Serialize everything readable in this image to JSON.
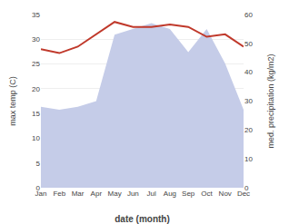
{
  "chart_data": {
    "type": "line",
    "xlabel": "date (month)",
    "ylabel": "max temp (C)",
    "y2label": "med. precipitation (kg/m2)",
    "categories": [
      "Jan",
      "Feb",
      "Mar",
      "Apr",
      "May",
      "Jun",
      "Jul",
      "Aug",
      "Sep",
      "Oct",
      "Nov",
      "Dec"
    ],
    "series": [
      {
        "type": "area",
        "axis": "y2",
        "color": "#c5cce8",
        "values": [
          28,
          27,
          28,
          30,
          53,
          55,
          57,
          55,
          47,
          55,
          43,
          27
        ]
      },
      {
        "type": "line",
        "color": "#c0392b",
        "values": [
          28.0,
          27.2,
          28.5,
          31.0,
          33.5,
          32.5,
          32.5,
          33.0,
          32.5,
          30.5,
          31.0,
          28.5
        ]
      }
    ],
    "ylim": [
      0,
      35
    ],
    "yticks": [
      0,
      5,
      10,
      15,
      20,
      25,
      30,
      35
    ],
    "y2lim": [
      0,
      60
    ],
    "y2ticks": [
      0,
      10,
      20,
      30,
      40,
      50,
      60
    ],
    "grid": true
  }
}
